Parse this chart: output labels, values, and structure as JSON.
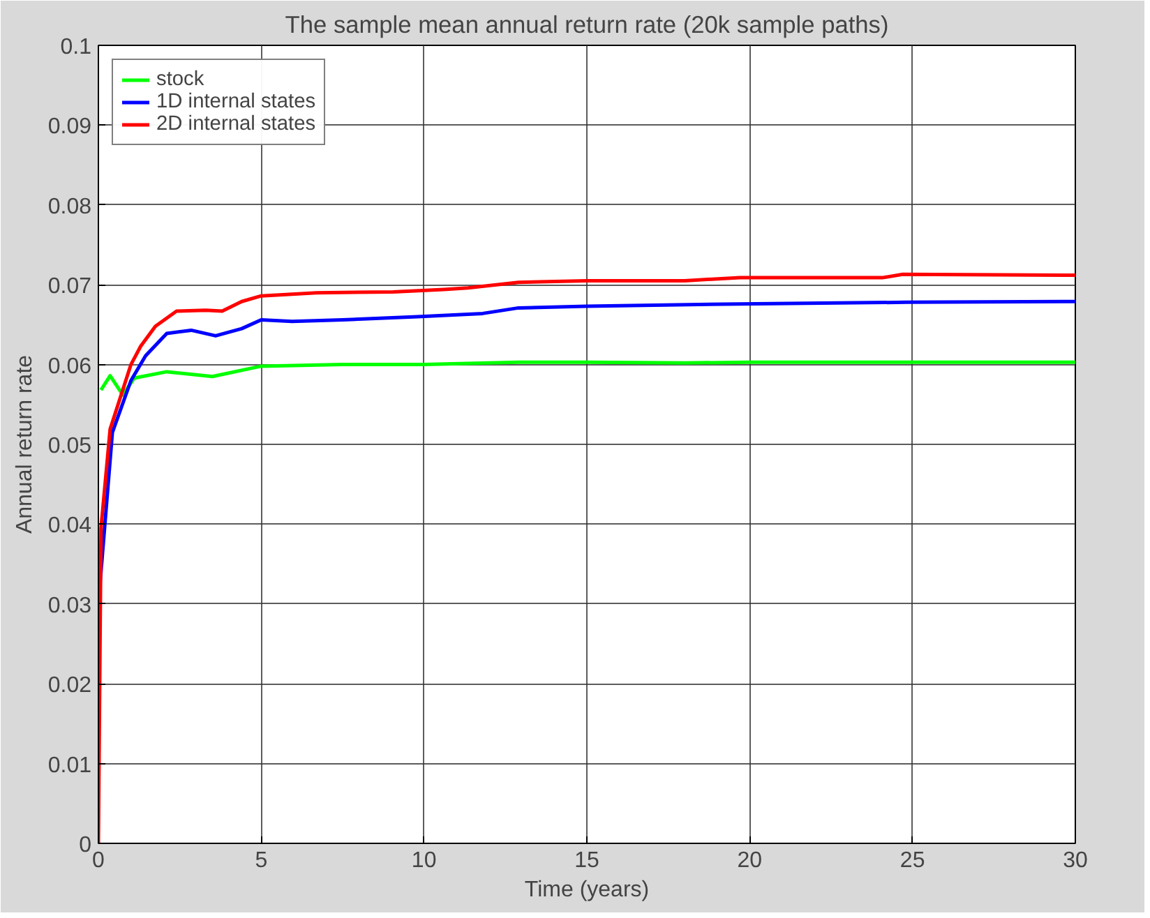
{
  "chart_data": {
    "type": "line",
    "title": "The sample mean annual return rate (20k sample paths)",
    "xlabel": "Time (years)",
    "ylabel": "Annual return rate",
    "xlim": [
      0,
      30
    ],
    "ylim": [
      0,
      0.1
    ],
    "xticks": [
      0,
      5,
      10,
      15,
      20,
      25,
      30
    ],
    "yticks": [
      0,
      0.01,
      0.02,
      0.03,
      0.04,
      0.05,
      0.06,
      0.07,
      0.08,
      0.09,
      0.1
    ],
    "grid": true,
    "legend": "top left",
    "line_style": "solid",
    "series": [
      {
        "name": "stock",
        "color": "#00ff00",
        "x": [
          0.08,
          0.36,
          0.75,
          1.1,
          2.1,
          3.5,
          5,
          7.5,
          10,
          12.9,
          15,
          18,
          20,
          25,
          30
        ],
        "values": [
          0.0568,
          0.0586,
          0.0562,
          0.0583,
          0.0591,
          0.0585,
          0.0598,
          0.06,
          0.06,
          0.0603,
          0.0603,
          0.0602,
          0.0603,
          0.0603,
          0.0603
        ]
      },
      {
        "name": "1D internal states",
        "color": "#0000ff",
        "x": [
          0,
          0.43,
          1.0,
          1.45,
          2.1,
          2.85,
          3.6,
          4.4,
          5,
          5.95,
          7.5,
          9.8,
          11.8,
          12.9,
          15,
          19.7,
          24.8,
          30
        ],
        "values": [
          0.03,
          0.0515,
          0.058,
          0.0611,
          0.0639,
          0.0643,
          0.0636,
          0.0645,
          0.0656,
          0.0654,
          0.0656,
          0.066,
          0.0664,
          0.0671,
          0.0673,
          0.0676,
          0.0678,
          0.0679
        ]
      },
      {
        "name": "2D internal states",
        "color": "#ff0000",
        "x": [
          0,
          0.08,
          0.36,
          1.0,
          1.3,
          1.75,
          2.4,
          3.3,
          3.8,
          4.4,
          5,
          6.7,
          9.05,
          10.6,
          11.35,
          12.9,
          15,
          18,
          19.7,
          24.1,
          24.7,
          30
        ],
        "values": [
          0,
          0.0395,
          0.0519,
          0.06,
          0.0623,
          0.0648,
          0.0667,
          0.0668,
          0.0667,
          0.0679,
          0.0686,
          0.069,
          0.0691,
          0.0694,
          0.0696,
          0.0703,
          0.0705,
          0.0705,
          0.0709,
          0.0709,
          0.0713,
          0.0712
        ]
      }
    ]
  }
}
